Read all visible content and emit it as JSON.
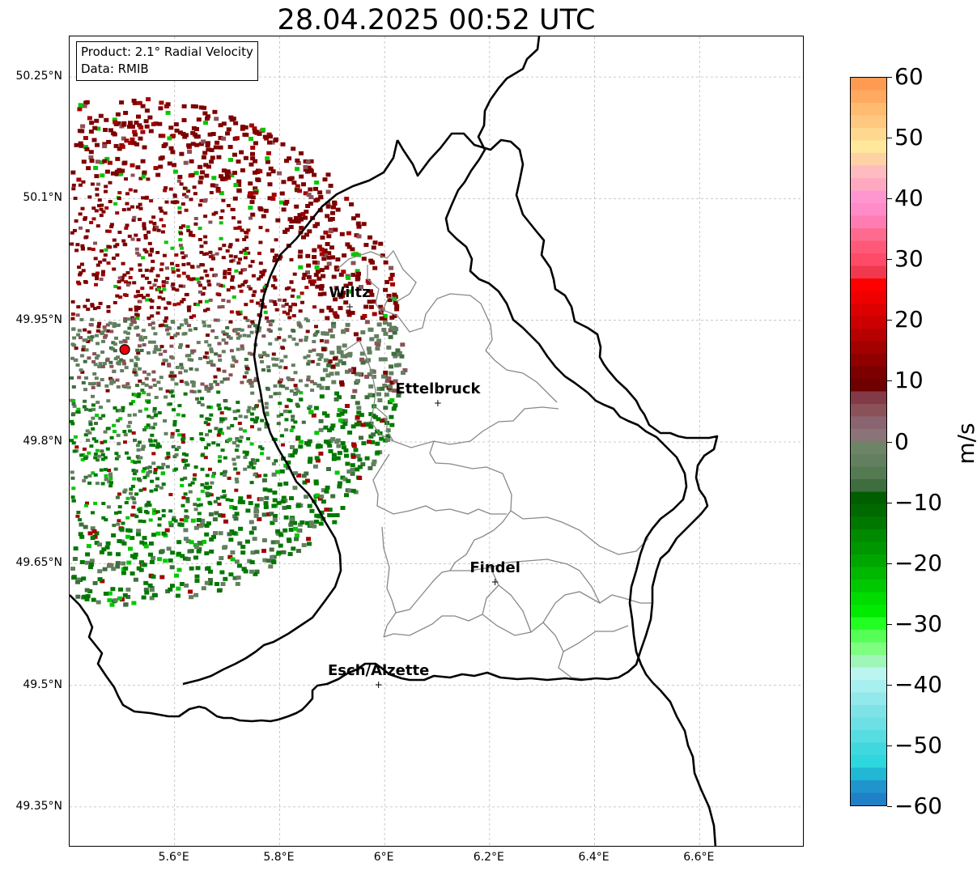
{
  "title": "28.04.2025 00:52 UTC",
  "info_box": {
    "product": "Product: 2.1° Radial Velocity",
    "data": "Data: RMIB"
  },
  "axes": {
    "lat_labels": [
      "50.25°N",
      "50.1°N",
      "49.95°N",
      "49.8°N",
      "49.65°N",
      "49.5°N",
      "49.35°N"
    ],
    "lat_values": [
      50.25,
      50.1,
      49.95,
      49.8,
      49.65,
      49.5,
      49.35
    ],
    "lon_labels": [
      "5.6°E",
      "5.8°E",
      "6°E",
      "6.2°E",
      "6.4°E",
      "6.6°E"
    ],
    "lon_values": [
      5.6,
      5.8,
      6.0,
      6.2,
      6.4,
      6.6
    ],
    "lon_range": [
      5.4,
      6.8
    ],
    "lat_range": [
      49.3,
      50.3
    ],
    "grid": true
  },
  "cities": [
    {
      "name": "Wiltz",
      "lon": 5.935,
      "lat": 49.966
    },
    {
      "name": "Ettelbruck",
      "lon": 6.103,
      "lat": 49.847
    },
    {
      "name": "Findel",
      "lon": 6.212,
      "lat": 49.626
    },
    {
      "name": "Esch/Alzette",
      "lon": 5.99,
      "lat": 49.5
    }
  ],
  "radar_site": {
    "lon": 5.505,
    "lat": 49.914,
    "color": "#e8000b"
  },
  "colorbar": {
    "unit": "m/s",
    "min": -60,
    "max": 60,
    "ticks": [
      60,
      50,
      40,
      30,
      20,
      10,
      0,
      -10,
      -20,
      -30,
      -40,
      -50,
      -60
    ],
    "tick_labels": [
      "60",
      "50",
      "40",
      "30",
      "20",
      "10",
      "0",
      "−10",
      "−20",
      "−30",
      "−40",
      "−50",
      "−60"
    ],
    "colors_top_to_bottom": [
      "#ff9a52",
      "#ffaa60",
      "#ffbb70",
      "#ffc880",
      "#ffd890",
      "#ffe79c",
      "#ffd2a6",
      "#ffbcc0",
      "#ffa9c0",
      "#ff96cf",
      "#ff8bc8",
      "#ff7db0",
      "#ff6a8f",
      "#ff5978",
      "#ff4a68",
      "#f0384e",
      "#ff0000",
      "#ee0000",
      "#dd0000",
      "#cc0000",
      "#b70000",
      "#a30000",
      "#900000",
      "#7d0000",
      "#6e0000",
      "#823a46",
      "#8a5258",
      "#8a6470",
      "#8a7478",
      "#6e8466",
      "#62805f",
      "#547a52",
      "#3e6e3e",
      "#005e00",
      "#006a00",
      "#007800",
      "#008a00",
      "#009600",
      "#00a600",
      "#00b800",
      "#00c800",
      "#00db00",
      "#00eb00",
      "#22ff22",
      "#56ff56",
      "#7fff7f",
      "#a0f5b8",
      "#bcf5f0",
      "#a8efef",
      "#92e8ea",
      "#7ee3e7",
      "#6ce0e5",
      "#56dce1",
      "#3fd8df",
      "#2ed6dd",
      "#21b8d4",
      "#2094cc",
      "#1f7fc7"
    ]
  },
  "radar_colors": {
    "outbound_strong": "#7d0000",
    "outbound_mid": "#a30000",
    "outbound_weak": "#8a5258",
    "near_zero": "#62805f",
    "inbound_weak": "#3e6e3e",
    "inbound_strong": "#007800",
    "inbound_bright": "#00c800"
  }
}
